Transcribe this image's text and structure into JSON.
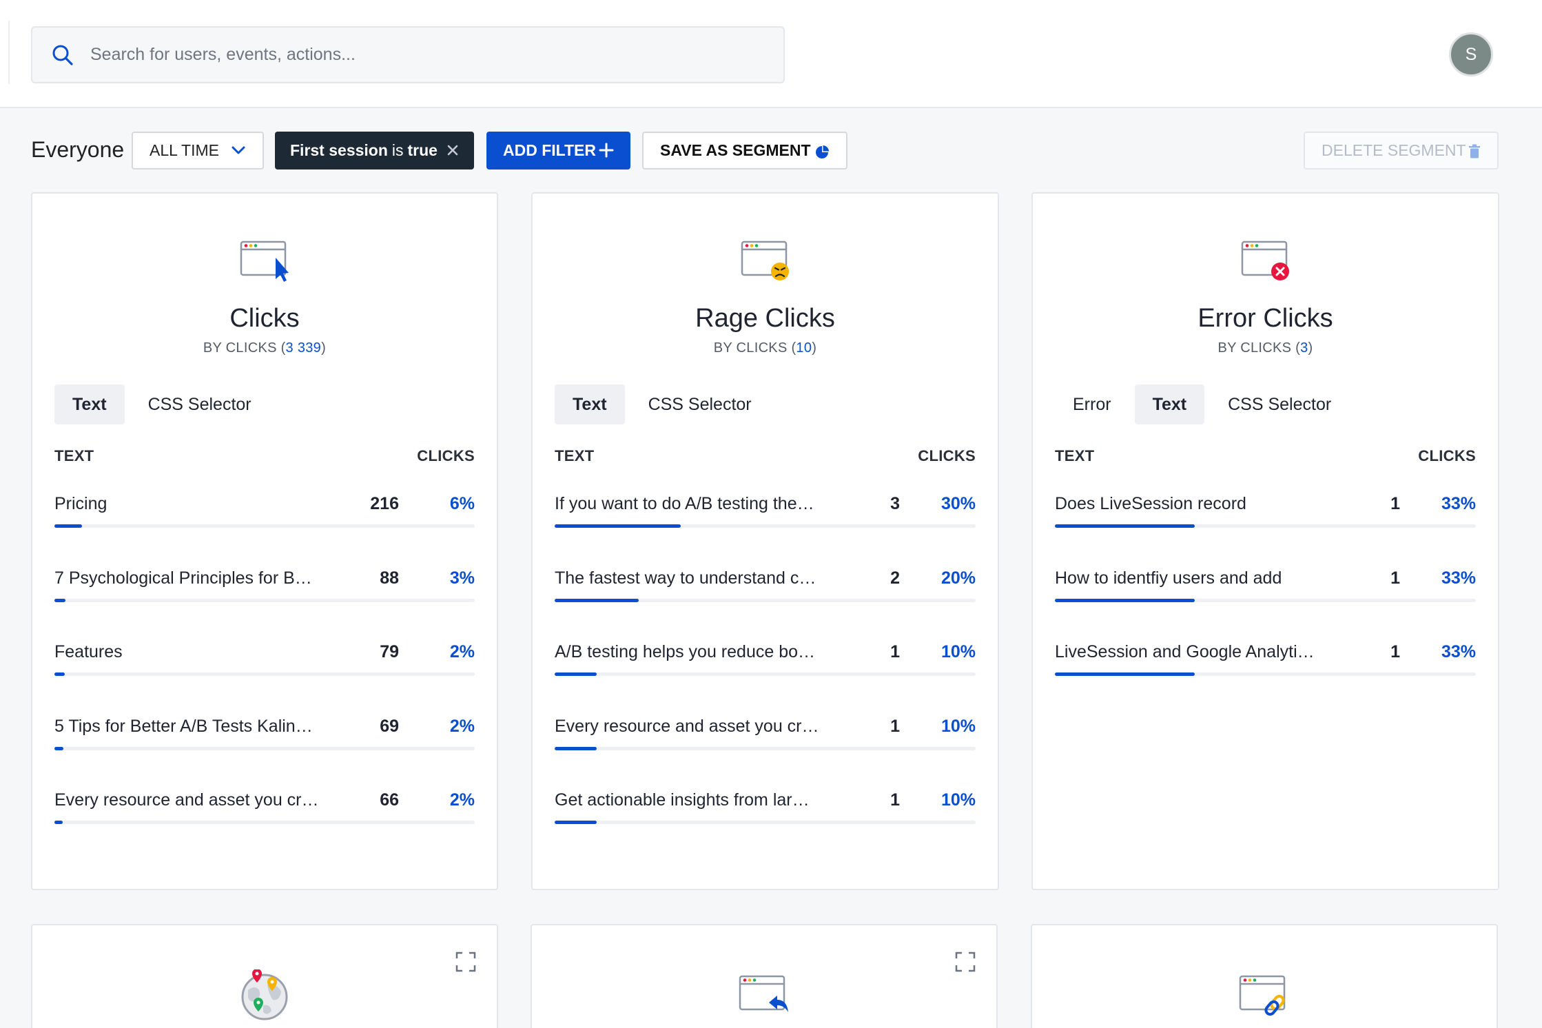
{
  "search": {
    "placeholder": "Search for users, events, actions..."
  },
  "user": {
    "avatar_letter": "S"
  },
  "filters": {
    "segment": "Everyone",
    "time": "ALL TIME",
    "chip": {
      "field": "First session",
      "op": "is",
      "value": "true"
    },
    "add_filter": "ADD FILTER",
    "save_segment": "SAVE AS SEGMENT",
    "delete_segment": "DELETE SEGMENT"
  },
  "colors": {
    "accent": "#0b4fd1",
    "chip_bg": "#1e2936",
    "red": "#e5173f",
    "amber": "#f5b400",
    "green": "#1fae5b"
  },
  "cards": [
    {
      "icon": "browser-cursor-icon",
      "title": "Clicks",
      "sub_prefix": "BY CLICKS (",
      "sub_count": "3 339",
      "sub_suffix": ")",
      "tabs": [
        {
          "label": "Text",
          "active": true
        },
        {
          "label": "CSS Selector",
          "active": false
        }
      ],
      "col_text": "TEXT",
      "col_clicks": "CLICKS",
      "rows": [
        {
          "label": "Pricing",
          "count": "216",
          "pct": "6%",
          "fill": 0.065
        },
        {
          "label": "7 Psychological Principles for B…",
          "count": "88",
          "pct": "3%",
          "fill": 0.026
        },
        {
          "label": "Features",
          "count": "79",
          "pct": "2%",
          "fill": 0.024
        },
        {
          "label": "5 Tips for Better A/B Tests Kalin…",
          "count": "69",
          "pct": "2%",
          "fill": 0.021
        },
        {
          "label": "Every resource and asset you cr…",
          "count": "66",
          "pct": "2%",
          "fill": 0.02
        }
      ]
    },
    {
      "icon": "browser-angry-face-icon",
      "title": "Rage Clicks",
      "sub_prefix": "BY CLICKS (",
      "sub_count": "10",
      "sub_suffix": ")",
      "tabs": [
        {
          "label": "Text",
          "active": true
        },
        {
          "label": "CSS Selector",
          "active": false
        }
      ],
      "col_text": "TEXT",
      "col_clicks": "CLICKS",
      "rows": [
        {
          "label": "If you want to do A/B testing the…",
          "count": "3",
          "pct": "30%",
          "fill": 0.3
        },
        {
          "label": "The fastest way to understand c…",
          "count": "2",
          "pct": "20%",
          "fill": 0.2
        },
        {
          "label": "A/B testing helps you reduce bo…",
          "count": "1",
          "pct": "10%",
          "fill": 0.1
        },
        {
          "label": "Every resource and asset you cr…",
          "count": "1",
          "pct": "10%",
          "fill": 0.1
        },
        {
          "label": "Get actionable insights from lar…",
          "count": "1",
          "pct": "10%",
          "fill": 0.1
        }
      ]
    },
    {
      "icon": "browser-error-icon",
      "title": "Error Clicks",
      "sub_prefix": "BY CLICKS (",
      "sub_count": "3",
      "sub_suffix": ")",
      "tabs": [
        {
          "label": "Error",
          "active": false
        },
        {
          "label": "Text",
          "active": true
        },
        {
          "label": "CSS Selector",
          "active": false
        }
      ],
      "col_text": "TEXT",
      "col_clicks": "CLICKS",
      "rows": [
        {
          "label": "Does LiveSession record",
          "count": "1",
          "pct": "33%",
          "fill": 0.333
        },
        {
          "label": "How to identfiy users and add",
          "count": "1",
          "pct": "33%",
          "fill": 0.333
        },
        {
          "label": "LiveSession and Google Analyti…",
          "count": "1",
          "pct": "33%",
          "fill": 0.333
        }
      ]
    }
  ],
  "bottom_cards": [
    {
      "icon": "globe-map-pins-icon",
      "expandable": true
    },
    {
      "icon": "browser-back-arrow-icon",
      "expandable": true
    },
    {
      "icon": "browser-link-icon",
      "expandable": false
    }
  ]
}
